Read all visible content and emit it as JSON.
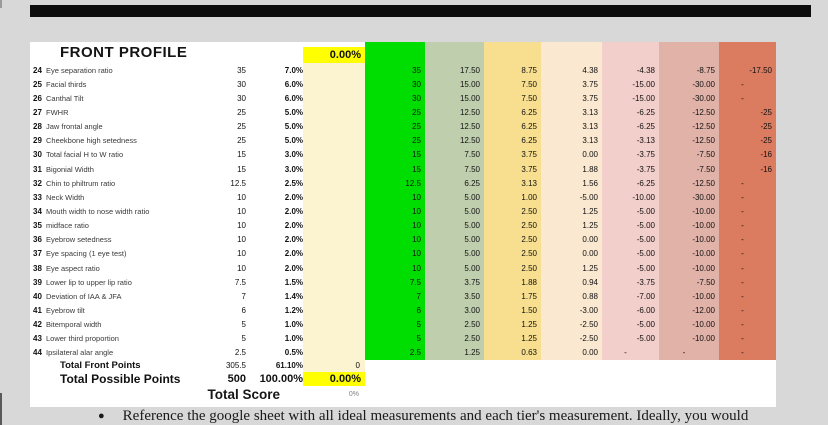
{
  "page": {
    "background": "#d8d8d8",
    "top_bar_color": "#0d0d0d"
  },
  "sheet": {
    "title": "FRONT PROFILE",
    "header_score": "0.00%",
    "highlight_color": "#ffff00",
    "score_col_color": "#fcf3d1",
    "tier_colors": [
      "#00dd00",
      "#bfcead",
      "#f7df8f",
      "#fae8d0",
      "#f2cfca",
      "#e1b2a8",
      "#db7b60"
    ],
    "rows": [
      {
        "num": "24",
        "label": "Eye separation ratio",
        "pts": "35",
        "pct": "7.0%",
        "tiers": [
          "35",
          "17.50",
          "8.75",
          "4.38",
          "-4.38",
          "-8.75",
          "-17.50"
        ]
      },
      {
        "num": "25",
        "label": "Facial thirds",
        "pts": "30",
        "pct": "6.0%",
        "tiers": [
          "30",
          "15.00",
          "7.50",
          "3.75",
          "-15.00",
          "-30.00",
          "-"
        ]
      },
      {
        "num": "26",
        "label": "Canthal Tilt",
        "pts": "30",
        "pct": "6.0%",
        "tiers": [
          "30",
          "15.00",
          "7.50",
          "3.75",
          "-15.00",
          "-30.00",
          "-"
        ]
      },
      {
        "num": "27",
        "label": "FWHR",
        "pts": "25",
        "pct": "5.0%",
        "tiers": [
          "25",
          "12.50",
          "6.25",
          "3.13",
          "-6.25",
          "-12.50",
          "-25"
        ]
      },
      {
        "num": "28",
        "label": "Jaw frontal angle",
        "pts": "25",
        "pct": "5.0%",
        "tiers": [
          "25",
          "12.50",
          "6.25",
          "3.13",
          "-6.25",
          "-12.50",
          "-25"
        ]
      },
      {
        "num": "29",
        "label": "Cheekbone high setedness",
        "pts": "25",
        "pct": "5.0%",
        "tiers": [
          "25",
          "12.50",
          "6.25",
          "3.13",
          "-3.13",
          "-12.50",
          "-25"
        ]
      },
      {
        "num": "30",
        "label": "Total facial H to W ratio",
        "pts": "15",
        "pct": "3.0%",
        "tiers": [
          "15",
          "7.50",
          "3.75",
          "0.00",
          "-3.75",
          "-7.50",
          "-16"
        ]
      },
      {
        "num": "31",
        "label": "Bigonial Width",
        "pts": "15",
        "pct": "3.0%",
        "tiers": [
          "15",
          "7.50",
          "3.75",
          "1.88",
          "-3.75",
          "-7.50",
          "-16"
        ]
      },
      {
        "num": "32",
        "label": "Chin to philtrum ratio",
        "pts": "12.5",
        "pct": "2.5%",
        "tiers": [
          "12.5",
          "6.25",
          "3.13",
          "1.56",
          "-6.25",
          "-12.50",
          "-"
        ]
      },
      {
        "num": "33",
        "label": "Neck Width",
        "pts": "10",
        "pct": "2.0%",
        "tiers": [
          "10",
          "5.00",
          "1.00",
          "-5.00",
          "-10.00",
          "-30.00",
          "-"
        ]
      },
      {
        "num": "34",
        "label": "Mouth width to nose width ratio",
        "pts": "10",
        "pct": "2.0%",
        "tiers": [
          "10",
          "5.00",
          "2.50",
          "1.25",
          "-5.00",
          "-10.00",
          "-"
        ]
      },
      {
        "num": "35",
        "label": "midface ratio",
        "pts": "10",
        "pct": "2.0%",
        "tiers": [
          "10",
          "5.00",
          "2.50",
          "1.25",
          "-5.00",
          "-10.00",
          "-"
        ]
      },
      {
        "num": "36",
        "label": "Eyebrow setedness",
        "pts": "10",
        "pct": "2.0%",
        "tiers": [
          "10",
          "5.00",
          "2.50",
          "0.00",
          "-5.00",
          "-10.00",
          "-"
        ]
      },
      {
        "num": "37",
        "label": "Eye spacing (1 eye test)",
        "pts": "10",
        "pct": "2.0%",
        "tiers": [
          "10",
          "5.00",
          "2.50",
          "0.00",
          "-5.00",
          "-10.00",
          "-"
        ]
      },
      {
        "num": "38",
        "label": "Eye aspect ratio",
        "pts": "10",
        "pct": "2.0%",
        "tiers": [
          "10",
          "5.00",
          "2.50",
          "1.25",
          "-5.00",
          "-10.00",
          "-"
        ]
      },
      {
        "num": "39",
        "label": "Lower lip to upper lip ratio",
        "pts": "7.5",
        "pct": "1.5%",
        "tiers": [
          "7.5",
          "3.75",
          "1.88",
          "0.94",
          "-3.75",
          "-7.50",
          "-"
        ]
      },
      {
        "num": "40",
        "label": "Deviation of IAA & JFA",
        "pts": "7",
        "pct": "1.4%",
        "tiers": [
          "7",
          "3.50",
          "1.75",
          "0.88",
          "-7.00",
          "-10.00",
          "-"
        ]
      },
      {
        "num": "41",
        "label": "Eyebrow tilt",
        "pts": "6",
        "pct": "1.2%",
        "tiers": [
          "6",
          "3.00",
          "1.50",
          "-3.00",
          "-6.00",
          "-12.00",
          "-"
        ]
      },
      {
        "num": "42",
        "label": "Bitemporal width",
        "pts": "5",
        "pct": "1.0%",
        "tiers": [
          "5",
          "2.50",
          "1.25",
          "-2.50",
          "-5.00",
          "-10.00",
          "-"
        ]
      },
      {
        "num": "43",
        "label": "Lower third proportion",
        "pts": "5",
        "pct": "1.0%",
        "tiers": [
          "5",
          "2.50",
          "1.25",
          "-2.50",
          "-5.00",
          "-10.00",
          "-"
        ]
      },
      {
        "num": "44",
        "label": "Ipsilateral alar angle",
        "pts": "2.5",
        "pct": "0.5%",
        "tiers": [
          "2.5",
          "1.25",
          "0.63",
          "0.00",
          "-",
          "-",
          "-"
        ]
      }
    ],
    "totals": {
      "front_label": "Total Front Points",
      "front_points": "305.5",
      "front_pct": "61.10%",
      "front_score": "0",
      "possible_label": "Total Possible Points",
      "possible_points": "500",
      "possible_pct": "100.00%",
      "possible_score": "0.00%",
      "score_label": "Total Score",
      "score_value": "0%"
    }
  },
  "footer": {
    "bullet": "●",
    "text": "Reference the google sheet with all ideal measurements and each tier's measurement. Ideally, you would"
  }
}
